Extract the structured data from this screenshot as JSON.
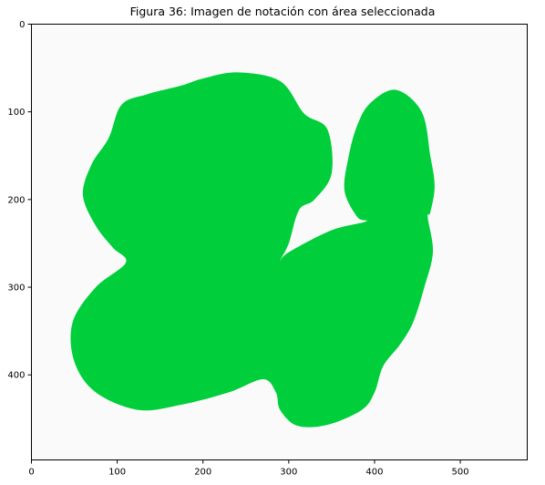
{
  "title": "Figura 36: Imagen de notación con área seleccionada",
  "chart_data": {
    "type": "image",
    "title": "Figura 36: Imagen de notación con área seleccionada",
    "xlim": [
      0,
      578
    ],
    "ylim": [
      497,
      0
    ],
    "xticks": [
      0,
      100,
      200,
      300,
      400,
      500
    ],
    "yticks": [
      0,
      100,
      200,
      300,
      400
    ],
    "background_color": "#fafafa",
    "region_color": "#00cf3b",
    "region_outline": [
      [
        90,
        130
      ],
      [
        70,
        160
      ],
      [
        60,
        195
      ],
      [
        75,
        230
      ],
      [
        95,
        255
      ],
      [
        110,
        272
      ],
      [
        75,
        300
      ],
      [
        48,
        340
      ],
      [
        50,
        385
      ],
      [
        75,
        420
      ],
      [
        125,
        440
      ],
      [
        175,
        434
      ],
      [
        230,
        420
      ],
      [
        270,
        405
      ],
      [
        285,
        420
      ],
      [
        290,
        440
      ],
      [
        310,
        458
      ],
      [
        345,
        457
      ],
      [
        385,
        440
      ],
      [
        400,
        420
      ],
      [
        410,
        390
      ],
      [
        430,
        365
      ],
      [
        445,
        340
      ],
      [
        458,
        300
      ],
      [
        468,
        260
      ],
      [
        462,
        220
      ],
      [
        465,
        215
      ],
      [
        470,
        185
      ],
      [
        465,
        150
      ],
      [
        455,
        100
      ],
      [
        425,
        75
      ],
      [
        395,
        90
      ],
      [
        380,
        115
      ],
      [
        370,
        150
      ],
      [
        365,
        190
      ],
      [
        380,
        220
      ],
      [
        390,
        225
      ],
      [
        350,
        235
      ],
      [
        300,
        260
      ],
      [
        290,
        270
      ],
      [
        300,
        250
      ],
      [
        312,
        212
      ],
      [
        330,
        200
      ],
      [
        350,
        170
      ],
      [
        345,
        120
      ],
      [
        318,
        102
      ],
      [
        290,
        65
      ],
      [
        240,
        55
      ],
      [
        200,
        62
      ],
      [
        175,
        70
      ],
      [
        135,
        80
      ],
      [
        105,
        92
      ]
    ]
  }
}
